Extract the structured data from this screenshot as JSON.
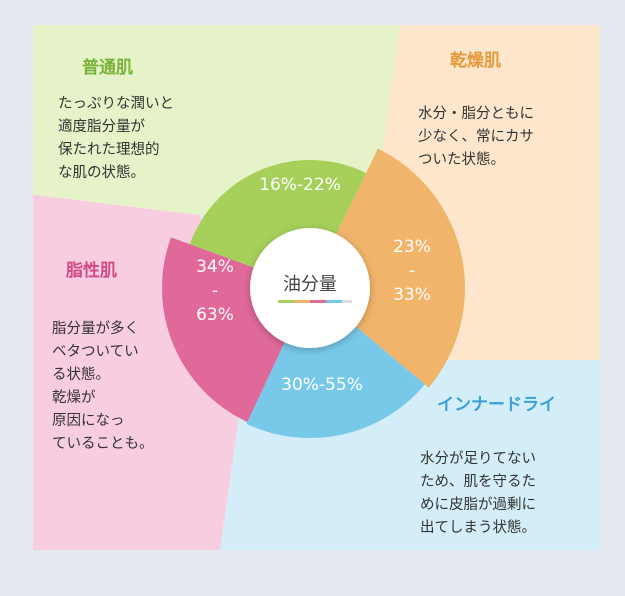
{
  "center_label": "油分量",
  "quadrants": [
    {
      "title": "普通肌",
      "description": [
        "たっぷりな潤いと",
        "適度脂分量が",
        "保たれた理想的",
        "な肌の状態。"
      ],
      "range": [
        "16%-22%"
      ]
    },
    {
      "title": "乾燥肌",
      "description": [
        "水分・脂分ともに",
        "少なく、常にカサ",
        "ついた状態。"
      ],
      "range": [
        "23%",
        "-",
        "33%"
      ]
    },
    {
      "title": "脂性肌",
      "description": [
        "脂分量が多く",
        "ベタついてい",
        "る状態。",
        "乾燥が",
        "原因になっ",
        "ていることも。"
      ],
      "range": [
        "34%",
        "-",
        "63%"
      ]
    },
    {
      "title": "インナードライ",
      "description": [
        "水分が足りてない",
        "ため、肌を守るた",
        "めに皮脂が過剰に",
        "出てしまう状態。"
      ],
      "range": [
        "30%-55%"
      ]
    }
  ]
}
